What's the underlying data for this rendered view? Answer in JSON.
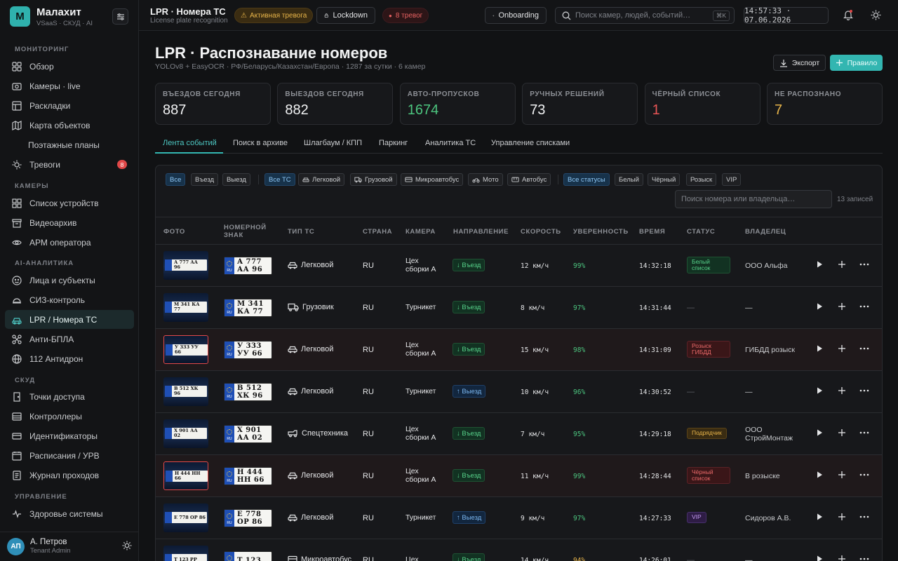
{
  "brand": {
    "logo": "М",
    "name": "Малахит",
    "sub": "VSaaS · СКУД · AI"
  },
  "sidebar": {
    "sections": [
      "МОНИТОРИНГ",
      "КАМЕРЫ",
      "AI-АНАЛИТИКА",
      "СКУД",
      "УПРАВЛЕНИЕ"
    ],
    "items": [
      {
        "label": "Обзор",
        "icon": "dashboard-icon"
      },
      {
        "label": "Камеры · live",
        "icon": "camera-icon"
      },
      {
        "label": "Раскладки",
        "icon": "layout-icon"
      },
      {
        "label": "Карта объектов",
        "icon": "map-icon"
      },
      {
        "label": "Поэтажные планы",
        "icon": ""
      },
      {
        "label": "Тревоги",
        "icon": "bell-icon",
        "badge": "8"
      },
      {
        "label": "Список устройств",
        "icon": "grid-icon"
      },
      {
        "label": "Видеоархив",
        "icon": "archive-icon"
      },
      {
        "label": "АРМ оператора",
        "icon": "eye-icon"
      },
      {
        "label": "Лица и субъекты",
        "icon": "face-icon"
      },
      {
        "label": "СИЗ-контроль",
        "icon": "helmet-icon"
      },
      {
        "label": "LPR / Номера ТС",
        "icon": "car-icon"
      },
      {
        "label": "Анти-БПЛА",
        "icon": "drone-icon"
      },
      {
        "label": "112 Антидрон",
        "icon": "radar-icon"
      },
      {
        "label": "Точки доступа",
        "icon": "door-icon"
      },
      {
        "label": "Контроллеры",
        "icon": "controller-icon"
      },
      {
        "label": "Идентификаторы",
        "icon": "id-card-icon"
      },
      {
        "label": "Расписания / УРВ",
        "icon": "calendar-icon"
      },
      {
        "label": "Журнал проходов",
        "icon": "journal-icon"
      },
      {
        "label": "Здоровье системы",
        "icon": "pulse-icon"
      }
    ]
  },
  "user": {
    "initials": "АП",
    "name": "А. Петров",
    "role": "Tenant Admin"
  },
  "topbar": {
    "title": "LPR · Номера ТС",
    "subtitle": "License plate recognition",
    "alert": "Активная тревога",
    "lockdown": "Lockdown",
    "alarms": "8 тревог",
    "onboarding": "Onboarding",
    "search_placeholder": "Поиск камер, людей, событий…",
    "shortcut": "⌘K",
    "clock": "14:57:33 · 07.06.2026"
  },
  "page": {
    "title": "LPR · Распознавание номеров",
    "subtitle": "YOLOv8 + EasyOCR · РФ/Беларусь/Казахстан/Европа · 1287 за сутки · 6 камер",
    "export": "Экспорт",
    "rule": "Правило"
  },
  "stats": [
    {
      "label": "ВЪЕЗДОВ СЕГОДНЯ",
      "value": "887",
      "color": "#f2f3f4"
    },
    {
      "label": "ВЫЕЗДОВ СЕГОДНЯ",
      "value": "882",
      "color": "#f2f3f4"
    },
    {
      "label": "АВТО-ПРОПУСКОВ",
      "value": "1674",
      "color": "#4cc57f"
    },
    {
      "label": "РУЧНЫХ РЕШЕНИЙ",
      "value": "73",
      "color": "#f2f3f4"
    },
    {
      "label": "ЧЁРНЫЙ СПИСОК",
      "value": "1",
      "color": "#e85555"
    },
    {
      "label": "НЕ РАСПОЗНАНО",
      "value": "7",
      "color": "#e8b54a"
    }
  ],
  "tabs": [
    "Лента событий",
    "Поиск в архиве",
    "Шлагбаум / КПП",
    "Паркинг",
    "Аналитика ТС",
    "Управление списками"
  ],
  "filters": {
    "direction": [
      "Все",
      "Въезд",
      "Выезд"
    ],
    "vehicle": [
      "Все ТС",
      "Легковой",
      "Грузовой",
      "Микроавтобус",
      "Мото",
      "Автобус"
    ],
    "status": [
      "Все статусы",
      "Белый",
      "Чёрный",
      "Розыск",
      "VIP"
    ],
    "search_placeholder": "Поиск номера или владельца…",
    "count": "13 записей"
  },
  "columns": [
    "ФОТО",
    "НОМЕРНОЙ ЗНАК",
    "ТИП ТС",
    "СТРАНА",
    "КАМЕРА",
    "НАПРАВЛЕНИЕ",
    "СКОРОСТЬ",
    "УВЕРЕННОСТЬ",
    "ВРЕМЯ",
    "СТАТУС",
    "ВЛАДЕЛЕЦ"
  ],
  "plate_region": "RU",
  "rows": [
    {
      "photo": "А 777 АА 96",
      "plate1": "А 777",
      "plate2": "АА 96",
      "type": "Легковой",
      "vicon": "car",
      "country": "RU",
      "camera": "Цех сборки А",
      "dir": "↓ Въезд",
      "dirc": "in",
      "speed": "12 км/ч",
      "conf": "99%",
      "time": "14:32:18",
      "status": "Белый список",
      "stc": "green",
      "owner": "ООО Альфа",
      "alert": false
    },
    {
      "photo": "М 341 КА 77",
      "plate1": "М 341",
      "plate2": "КА 77",
      "type": "Грузовик",
      "vicon": "truck",
      "country": "RU",
      "camera": "Турникет",
      "dir": "↓ Въезд",
      "dirc": "in",
      "speed": "8 км/ч",
      "conf": "97%",
      "time": "14:31:44",
      "status": "—",
      "stc": "none",
      "owner": "—",
      "alert": false
    },
    {
      "photo": "У 333 УУ 66",
      "plate1": "У 333",
      "plate2": "УУ 66",
      "type": "Легковой",
      "vicon": "car",
      "country": "RU",
      "camera": "Цех сборки А",
      "dir": "↓ Въезд",
      "dirc": "in",
      "speed": "15 км/ч",
      "conf": "98%",
      "time": "14:31:09",
      "status": "Розыск ГИБДД",
      "stc": "red",
      "owner": "ГИБДД розыск",
      "alert": true
    },
    {
      "photo": "В 512 ХК 96",
      "plate1": "В 512",
      "plate2": "ХК 96",
      "type": "Легковой",
      "vicon": "car",
      "country": "RU",
      "camera": "Турникет",
      "dir": "↑ Выезд",
      "dirc": "out",
      "speed": "10 км/ч",
      "conf": "96%",
      "time": "14:30:52",
      "status": "—",
      "stc": "none",
      "owner": "—",
      "alert": false
    },
    {
      "photo": "Х 901 АА 02",
      "plate1": "Х 901",
      "plate2": "АА 02",
      "type": "Спецтехника",
      "vicon": "special",
      "country": "RU",
      "camera": "Цех сборки А",
      "dir": "↓ Въезд",
      "dirc": "in",
      "speed": "7 км/ч",
      "conf": "95%",
      "time": "14:29:18",
      "status": "Подрядчик",
      "stc": "amber",
      "owner": "ООО СтройМонтаж",
      "alert": false
    },
    {
      "photo": "Н 444 НН 66",
      "plate1": "Н 444",
      "plate2": "НН 66",
      "type": "Легковой",
      "vicon": "car",
      "country": "RU",
      "camera": "Цех сборки А",
      "dir": "↓ Въезд",
      "dirc": "in",
      "speed": "11 км/ч",
      "conf": "99%",
      "time": "14:28:44",
      "status": "Чёрный список",
      "stc": "red",
      "owner": "В розыске",
      "alert": true
    },
    {
      "photo": "Е 778 ОР 86",
      "plate1": "Е 778",
      "plate2": "ОР 86",
      "type": "Легковой",
      "vicon": "car",
      "country": "RU",
      "camera": "Турникет",
      "dir": "↑ Выезд",
      "dirc": "out",
      "speed": "9 км/ч",
      "conf": "97%",
      "time": "14:27:33",
      "status": "VIP",
      "stc": "vip",
      "owner": "Сидоров А.В.",
      "alert": false
    },
    {
      "photo": "Т 123 РР",
      "plate1": "Т 123",
      "plate2": "",
      "type": "Микроавтобус",
      "vicon": "bus",
      "country": "RU",
      "camera": "Цех",
      "dir": "↓ Въезд",
      "dirc": "in",
      "speed": "14 км/ч",
      "conf": "94%",
      "time": "14:26:01",
      "status": "—",
      "stc": "none",
      "owner": "—",
      "alert": false
    }
  ],
  "colors": {
    "accent": "#33b6b1",
    "green": "#4cc57f",
    "red": "#e85555",
    "amber": "#e8b54a"
  }
}
